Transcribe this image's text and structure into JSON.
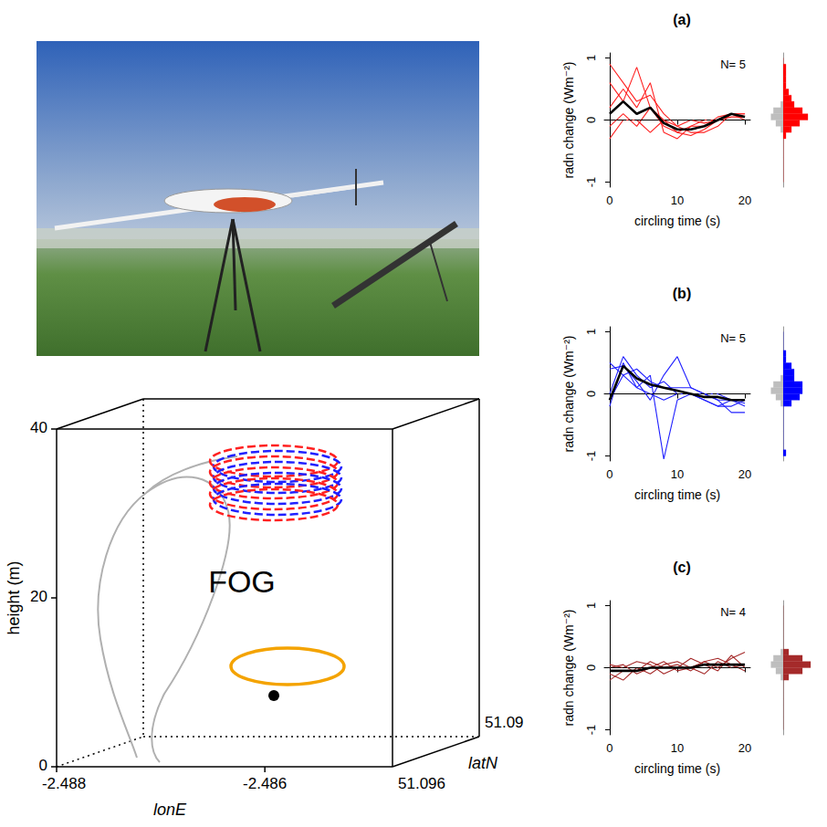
{
  "trajectory_plot": {
    "type": "3d_path",
    "label": "FOG",
    "xlabel": "lonE",
    "ylabel": "latN",
    "zlabel": "height (m)",
    "xticks": [
      -2.488,
      -2.486
    ],
    "yticks": [
      51.09,
      51.096
    ],
    "zlim": [
      0,
      40
    ],
    "zticks": [
      0,
      20,
      40
    ]
  },
  "chart_data": [
    {
      "type": "line",
      "title": "(a)",
      "xlabel": "circling time (s)",
      "ylabel": "radn change (Wm⁻²)",
      "xlim": [
        -0.8,
        20.8
      ],
      "xticks": [
        0,
        10,
        20
      ],
      "ylim": [
        -1.08,
        1.08
      ],
      "yticks": [
        -1,
        0,
        1
      ],
      "grid": false,
      "annotations": [
        {
          "text": "N= 5"
        }
      ],
      "x": [
        0,
        2,
        4,
        6,
        8,
        10,
        12,
        14,
        16,
        18,
        20
      ],
      "series": [
        {
          "color": "#ff2020",
          "line_style": "solid",
          "values": [
            0.9,
            0.6,
            0.3,
            0.4,
            0.1,
            -0.1,
            -0.2,
            -0.2,
            -0.1,
            0.1,
            0.1
          ]
        },
        {
          "color": "#ff2020",
          "line_style": "solid",
          "values": [
            0.6,
            0.3,
            0.85,
            0.2,
            0.0,
            -0.2,
            -0.25,
            -0.15,
            0.0,
            0.1,
            0.1
          ]
        },
        {
          "color": "#ff2020",
          "line_style": "solid",
          "values": [
            0.2,
            0.5,
            0.2,
            0.6,
            -0.2,
            -0.3,
            -0.1,
            -0.1,
            0.05,
            0.1,
            0.05
          ]
        },
        {
          "color": "#ff2020",
          "line_style": "solid",
          "values": [
            -0.1,
            0.1,
            -0.1,
            0.2,
            -0.1,
            -0.2,
            -0.1,
            0.0,
            0.0,
            0.1,
            0.0
          ]
        },
        {
          "color": "#ff2020",
          "line_style": "solid",
          "values": [
            -0.3,
            0.0,
            0.0,
            -0.2,
            0.0,
            -0.1,
            0.0,
            -0.05,
            0.0,
            0.05,
            0.05
          ]
        },
        {
          "color": "#000000",
          "line_style": "solid",
          "values": [
            0.1,
            0.3,
            0.1,
            0.2,
            -0.05,
            -0.15,
            -0.15,
            -0.1,
            0.0,
            0.1,
            0.05
          ]
        },
        {
          "color": "#000000",
          "line_style": "dashed",
          "x": [
            -0.8,
            20.8
          ],
          "values": [
            0,
            0
          ]
        }
      ],
      "histogram": {
        "bins": [
          -1.0,
          -0.9,
          -0.8,
          -0.7,
          -0.6,
          -0.5,
          -0.4,
          -0.3,
          -0.2,
          -0.1,
          0.0,
          0.1,
          0.2,
          0.3,
          0.4,
          0.5,
          0.6,
          0.7,
          0.8,
          0.9,
          1.0
        ],
        "counts": [
          0,
          0,
          0,
          0,
          0,
          0,
          0,
          1,
          3,
          6,
          9,
          7,
          4,
          3,
          2,
          1,
          1,
          1,
          1,
          0
        ],
        "color": "#ff0000",
        "background_counts": [
          0,
          0,
          0,
          0,
          0,
          0,
          0,
          0,
          1,
          3,
          5,
          4,
          1,
          0,
          0,
          0,
          0,
          0,
          0,
          0
        ],
        "background_color": "#bebebe",
        "count_lim": [
          0,
          12
        ],
        "tick_labels": false
      }
    },
    {
      "type": "line",
      "title": "(b)",
      "xlabel": "circling time (s)",
      "ylabel": "radn change (Wm⁻²)",
      "xlim": [
        -0.8,
        20.8
      ],
      "xticks": [
        0,
        10,
        20
      ],
      "ylim": [
        -1.08,
        1.08
      ],
      "yticks": [
        -1,
        0,
        1
      ],
      "grid": false,
      "annotations": [
        {
          "text": "N= 5"
        }
      ],
      "x": [
        0,
        2,
        4,
        6,
        8,
        10,
        12,
        14,
        16,
        18,
        20
      ],
      "series": [
        {
          "color": "#2020ff",
          "line_style": "solid",
          "values": [
            0.5,
            0.3,
            0.1,
            0.0,
            -0.1,
            0.0,
            0.0,
            -0.1,
            -0.2,
            -0.2,
            -0.1
          ]
        },
        {
          "color": "#2020ff",
          "line_style": "solid",
          "values": [
            0.4,
            0.45,
            0.2,
            -0.1,
            0.3,
            0.6,
            0.1,
            0.0,
            -0.1,
            -0.3,
            -0.3
          ]
        },
        {
          "color": "#2020ff",
          "line_style": "solid",
          "values": [
            -0.2,
            0.5,
            0.1,
            0.3,
            -1.05,
            -0.1,
            0.0,
            -0.1,
            -0.2,
            -0.1,
            -0.2
          ]
        },
        {
          "color": "#2020ff",
          "line_style": "solid",
          "values": [
            0.0,
            0.6,
            0.3,
            0.1,
            0.2,
            0.0,
            0.0,
            0.0,
            0.0,
            -0.1,
            -0.1
          ]
        },
        {
          "color": "#2020ff",
          "line_style": "solid",
          "values": [
            -0.1,
            0.3,
            0.4,
            0.2,
            0.1,
            0.1,
            0.1,
            0.0,
            -0.1,
            -0.1,
            -0.15
          ]
        },
        {
          "color": "#000000",
          "line_style": "solid",
          "values": [
            -0.1,
            0.45,
            0.25,
            0.15,
            0.1,
            0.05,
            0.0,
            -0.05,
            -0.05,
            -0.1,
            -0.1
          ]
        },
        {
          "color": "#000000",
          "line_style": "dashed",
          "x": [
            -0.8,
            20.8
          ],
          "values": [
            0,
            0
          ]
        }
      ],
      "histogram": {
        "bins": [
          -1.0,
          -0.9,
          -0.8,
          -0.7,
          -0.6,
          -0.5,
          -0.4,
          -0.3,
          -0.2,
          -0.1,
          0.0,
          0.1,
          0.2,
          0.3,
          0.4,
          0.5,
          0.6,
          0.7,
          0.8,
          0.9,
          1.0
        ],
        "counts": [
          1,
          0,
          0,
          0,
          0,
          0,
          0,
          0,
          3,
          6,
          7,
          7,
          4,
          4,
          3,
          1,
          1,
          0,
          0,
          0
        ],
        "color": "#0000ff",
        "background_counts": [
          0,
          0,
          0,
          0,
          0,
          0,
          0,
          0,
          1,
          3,
          5,
          4,
          1,
          0,
          0,
          0,
          0,
          0,
          0,
          0
        ],
        "background_color": "#bebebe",
        "count_lim": [
          0,
          12
        ],
        "tick_labels": false
      }
    },
    {
      "type": "line",
      "title": "(c)",
      "xlabel": "circling time (s)",
      "ylabel": "radn change (Wm⁻²)",
      "xlim": [
        -0.8,
        20.8
      ],
      "xticks": [
        0,
        10,
        20
      ],
      "ylim": [
        -1.08,
        1.08
      ],
      "yticks": [
        -1,
        0,
        1
      ],
      "grid": false,
      "annotations": [
        {
          "text": "N= 4"
        }
      ],
      "x": [
        0,
        2,
        4,
        6,
        8,
        10,
        12,
        14,
        16,
        18,
        20
      ],
      "series": [
        {
          "color": "#a52a2a",
          "line_style": "solid",
          "values": [
            0.0,
            0.05,
            -0.1,
            0.0,
            0.1,
            -0.05,
            0.0,
            0.1,
            0.0,
            0.15,
            0.25
          ]
        },
        {
          "color": "#a52a2a",
          "line_style": "solid",
          "values": [
            -0.1,
            -0.2,
            0.0,
            -0.1,
            0.05,
            0.1,
            0.0,
            -0.1,
            0.1,
            0.0,
            0.05
          ]
        },
        {
          "color": "#a52a2a",
          "line_style": "solid",
          "values": [
            0.05,
            0.0,
            0.1,
            0.05,
            -0.1,
            0.0,
            0.15,
            0.05,
            -0.05,
            0.2,
            0.0
          ]
        },
        {
          "color": "#a52a2a",
          "line_style": "solid",
          "values": [
            -0.2,
            -0.05,
            -0.05,
            0.1,
            0.0,
            0.05,
            -0.05,
            0.1,
            0.15,
            0.05,
            -0.05
          ]
        },
        {
          "color": "#000000",
          "line_style": "solid",
          "values": [
            -0.05,
            -0.05,
            -0.05,
            0.0,
            0.0,
            0.0,
            0.0,
            0.05,
            0.05,
            0.05,
            0.05
          ]
        },
        {
          "color": "#000000",
          "line_style": "dashed",
          "x": [
            -0.8,
            20.8
          ],
          "values": [
            0,
            0
          ]
        }
      ],
      "histogram": {
        "bins": [
          -1.0,
          -0.9,
          -0.8,
          -0.7,
          -0.6,
          -0.5,
          -0.4,
          -0.3,
          -0.2,
          -0.1,
          0.0,
          0.1,
          0.2,
          0.3,
          0.4,
          0.5,
          0.6,
          0.7,
          0.8,
          0.9,
          1.0
        ],
        "counts": [
          0,
          0,
          0,
          0,
          0,
          0,
          0,
          0,
          2,
          7,
          10,
          7,
          2,
          0,
          0,
          0,
          0,
          0,
          0,
          0
        ],
        "color": "#a52a2a",
        "background_counts": [
          0,
          0,
          0,
          0,
          0,
          0,
          0,
          0,
          1,
          3,
          5,
          4,
          1,
          0,
          0,
          0,
          0,
          0,
          0,
          0
        ],
        "background_color": "#bebebe",
        "count_lim": [
          0,
          12
        ],
        "tick_labels": false
      }
    }
  ]
}
